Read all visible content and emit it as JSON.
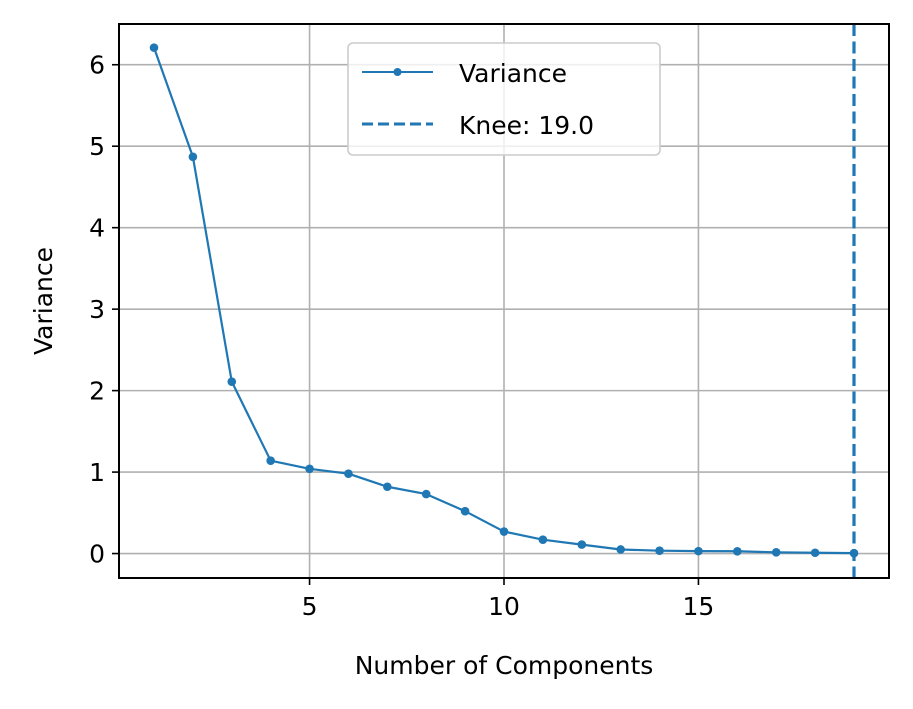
{
  "chart_data": {
    "type": "line",
    "title": "",
    "xlabel": "Number of Components",
    "ylabel": "Variance",
    "xlim": [
      0.1,
      19.9
    ],
    "ylim": [
      -0.3,
      6.5
    ],
    "xticks": [
      5,
      10,
      15
    ],
    "yticks": [
      0,
      1,
      2,
      3,
      4,
      5,
      6
    ],
    "grid": true,
    "legend_position": "top-center",
    "colors": {
      "series": "#1f77b4",
      "knee": "#1f77b4"
    },
    "series": [
      {
        "name": "Variance",
        "x": [
          1,
          2,
          3,
          4,
          5,
          6,
          7,
          8,
          9,
          10,
          11,
          12,
          13,
          14,
          15,
          16,
          17,
          18,
          19
        ],
        "values": [
          6.21,
          4.87,
          2.11,
          1.14,
          1.04,
          0.98,
          0.82,
          0.73,
          0.52,
          0.27,
          0.17,
          0.11,
          0.05,
          0.035,
          0.03,
          0.028,
          0.015,
          0.01,
          0.005
        ]
      }
    ],
    "knee": {
      "label": "Knee: 19.0",
      "x": 19.0
    }
  }
}
